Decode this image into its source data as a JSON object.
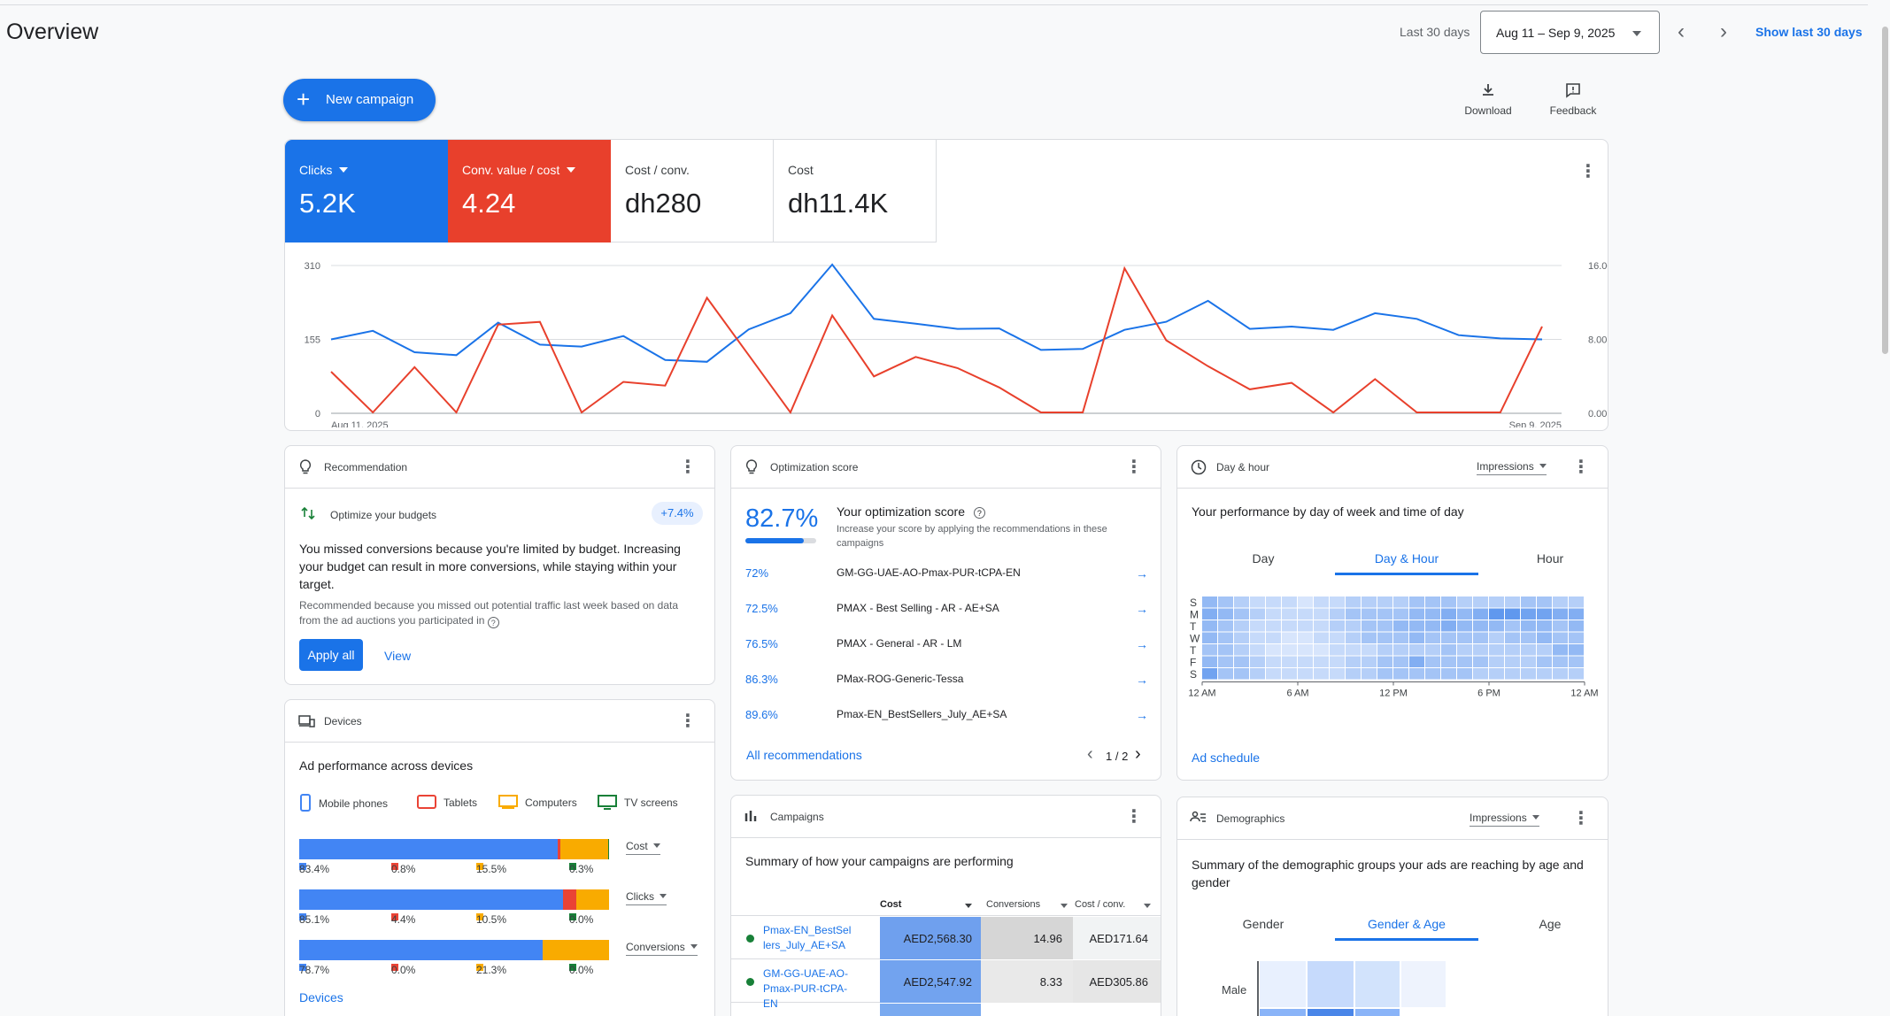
{
  "header": {
    "title": "Overview",
    "range_label": "Last 30 days",
    "date_range": "Aug 11 – Sep 9, 2025",
    "show_last": "Show last 30 days"
  },
  "actions": {
    "new_campaign": "New campaign",
    "download": "Download",
    "feedback": "Feedback"
  },
  "metrics": [
    {
      "label": "Clicks",
      "value": "5.2K"
    },
    {
      "label": "Conv. value / cost",
      "value": "4.24"
    },
    {
      "label": "Cost / conv.",
      "value": "dh280"
    },
    {
      "label": "Cost",
      "value": "dh11.4K"
    }
  ],
  "chart_data": {
    "type": "line",
    "x_start_label": "Aug 11, 2025",
    "x_end_label": "Sep 9, 2025",
    "left_axis_ticks": [
      "310",
      "155",
      "0"
    ],
    "right_axis_ticks": [
      "16.00",
      "8.00",
      "0.00"
    ],
    "ylim_left": [
      0,
      310
    ],
    "ylim_right": [
      0,
      16
    ],
    "series": [
      {
        "color": "#1a73e8",
        "axis": "left",
        "values": [
          155,
          173,
          128,
          122,
          190,
          144,
          140,
          162,
          112,
          108,
          176,
          210,
          312,
          198,
          188,
          177,
          178,
          133,
          135,
          175,
          192,
          236,
          177,
          182,
          175,
          210,
          198,
          164,
          157,
          155
        ]
      },
      {
        "color": "#e8402c",
        "axis": "right",
        "values": [
          4.5,
          0.1,
          5.0,
          0.1,
          9.6,
          9.9,
          0.1,
          3.4,
          3.0,
          12.5,
          6.3,
          0.1,
          10.6,
          4.0,
          6.1,
          4.9,
          2.8,
          0.1,
          0.1,
          15.7,
          7.9,
          5.1,
          2.6,
          3.3,
          0.1,
          3.7,
          0.1,
          0.1,
          0.1,
          9.4
        ]
      }
    ]
  },
  "recommendation": {
    "title": "Recommendation",
    "item": "Optimize your budgets",
    "badge": "+7.4%",
    "headline": "You missed conversions because you're limited by budget. Increasing your budget can result in more conversions, while staying within your target.",
    "note": "Recommended because you missed out potential traffic last week based on data from the ad auctions you participated in",
    "apply": "Apply all",
    "view": "View"
  },
  "optimization": {
    "title": "Optimization score",
    "score": "82.7%",
    "score_fraction": 0.827,
    "heading": "Your optimization score",
    "sub": "Increase your score by applying the recommendations in these campaigns",
    "rows": [
      {
        "pct": "72%",
        "name": "GM-GG-UAE-AO-Pmax-PUR-tCPA-EN"
      },
      {
        "pct": "72.5%",
        "name": "PMAX - Best Selling - AR - AE+SA"
      },
      {
        "pct": "76.5%",
        "name": "PMAX - General - AR - LM"
      },
      {
        "pct": "86.3%",
        "name": "PMax-ROG-Generic-Tessa"
      },
      {
        "pct": "89.6%",
        "name": "Pmax-EN_BestSellers_July_AE+SA"
      }
    ],
    "all_link": "All recommendations",
    "pager": "1 / 2"
  },
  "dayhour": {
    "title": "Day & hour",
    "metric": "Impressions",
    "heading": "Your performance by day of week and time of day",
    "tabs": [
      "Day",
      "Day & Hour",
      "Hour"
    ],
    "days": [
      "S",
      "M",
      "T",
      "W",
      "T",
      "F",
      "S"
    ],
    "hours": [
      "12 AM",
      "6 AM",
      "12 PM",
      "6 PM",
      "12 AM"
    ],
    "link": "Ad schedule"
  },
  "devices": {
    "title": "Devices",
    "heading": "Ad performance across devices",
    "legend": [
      {
        "name": "Mobile phones",
        "color": "#4285f4"
      },
      {
        "name": "Tablets",
        "color": "#ea4335"
      },
      {
        "name": "Computers",
        "color": "#f9ab00"
      },
      {
        "name": "TV screens",
        "color": "#188038"
      }
    ],
    "rows": [
      {
        "metric": "Cost",
        "values": [
          83.4,
          0.8,
          15.5,
          0.3
        ],
        "labels": [
          "83.4%",
          "0.8%",
          "15.5%",
          "0.3%"
        ]
      },
      {
        "metric": "Clicks",
        "values": [
          85.1,
          4.4,
          10.5,
          0.0
        ],
        "labels": [
          "85.1%",
          "4.4%",
          "10.5%",
          "0.0%"
        ]
      },
      {
        "metric": "Conversions",
        "values": [
          78.7,
          0.0,
          21.3,
          0.0
        ],
        "labels": [
          "78.7%",
          "0.0%",
          "21.3%",
          "0.0%"
        ]
      }
    ],
    "link": "Devices"
  },
  "campaigns": {
    "title": "Campaigns",
    "heading": "Summary of how your campaigns are performing",
    "columns": [
      "Cost",
      "Conversions",
      "Cost / conv."
    ],
    "rows": [
      {
        "name": "Pmax-EN_BestSellers_July_AE+SA",
        "cost": "AED2,568.30",
        "conv": "14.96",
        "cpc": "AED171.64"
      },
      {
        "name": "GM-GG-UAE-AO-Pmax-PUR-tCPA-EN",
        "cost": "AED2,547.92",
        "conv": "8.33",
        "cpc": "AED305.86"
      }
    ]
  },
  "demographics": {
    "title": "Demographics",
    "metric": "Impressions",
    "heading": "Summary of the demographic groups your ads are reaching by age and gender",
    "tabs": [
      "Gender",
      "Gender & Age",
      "Age"
    ],
    "row_label": "Male"
  }
}
